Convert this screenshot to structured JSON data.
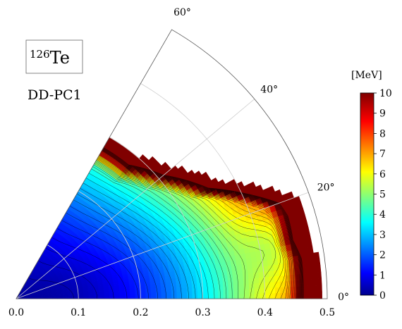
{
  "chart_data": {
    "type": "heatmap",
    "title_mass": "126",
    "title_element": "Te",
    "subtitle": "DD-PC1",
    "colorbar_unit": "[MeV]",
    "colorbar_ticks": [
      "0",
      "1",
      "2",
      "3",
      "4",
      "5",
      "6",
      "7",
      "8",
      "9",
      "10"
    ],
    "colorbar_range": [
      0,
      10
    ],
    "radial_ticks": [
      "0.0",
      "0.1",
      "0.2",
      "0.3",
      "0.4",
      "0.5"
    ],
    "radial_range": [
      0,
      0.5
    ],
    "angle_ticks": [
      "0°",
      "20°",
      "40°",
      "60°"
    ],
    "angle_range": [
      0,
      60
    ],
    "contour_step": 0.25,
    "colormap": "jet",
    "valid_region_boundary": [
      {
        "gamma": 0,
        "beta": 0.49
      },
      {
        "gamma": 3,
        "beta": 0.49
      },
      {
        "gamma": 8,
        "beta": 0.49
      },
      {
        "gamma": 12,
        "beta": 0.48
      },
      {
        "gamma": 17,
        "beta": 0.485
      },
      {
        "gamma": 20,
        "beta": 0.48
      },
      {
        "gamma": 24,
        "beta": 0.44
      },
      {
        "gamma": 30,
        "beta": 0.38
      },
      {
        "gamma": 40,
        "beta": 0.33
      },
      {
        "gamma": 50,
        "beta": 0.3
      },
      {
        "gamma": 60,
        "beta": 0.3
      }
    ],
    "energy_surface_samples": [
      {
        "gamma": 0,
        "beta": 0.0,
        "E": 0.5
      },
      {
        "gamma": 0,
        "beta": 0.1,
        "E": 1.1
      },
      {
        "gamma": 0,
        "beta": 0.2,
        "E": 3.6
      },
      {
        "gamma": 0,
        "beta": 0.3,
        "E": 6.7
      },
      {
        "gamma": 0,
        "beta": 0.4,
        "E": 8.4
      },
      {
        "gamma": 0,
        "beta": 0.45,
        "E": 9.5
      },
      {
        "gamma": 30,
        "beta": 0.1,
        "E": 1.5
      },
      {
        "gamma": 30,
        "beta": 0.2,
        "E": 4.2
      },
      {
        "gamma": 30,
        "beta": 0.3,
        "E": 6.8
      },
      {
        "gamma": 60,
        "beta": 0.1,
        "E": 2.0
      },
      {
        "gamma": 60,
        "beta": 0.2,
        "E": 5.0
      },
      {
        "gamma": 60,
        "beta": 0.29,
        "E": 8.5
      }
    ]
  }
}
